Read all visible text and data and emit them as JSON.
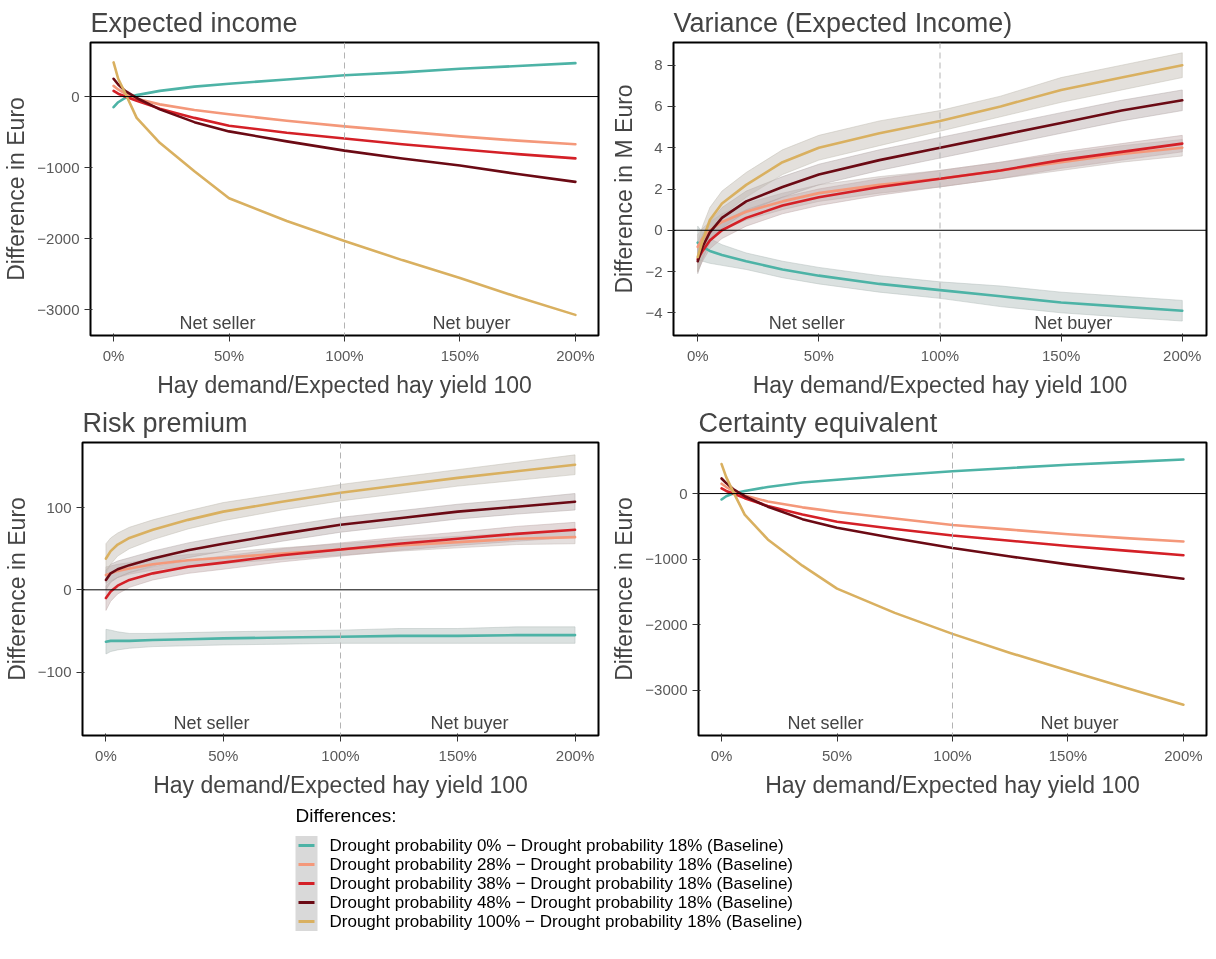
{
  "chart_data": [
    {
      "type": "line",
      "title": "Expected income",
      "xlabel": "Hay demand/Expected hay yield 100",
      "ylabel": "Difference in Euro",
      "x": [
        0,
        2,
        5,
        10,
        20,
        35,
        50,
        75,
        100,
        125,
        150,
        175,
        200
      ],
      "xlim": [
        -10,
        210
      ],
      "xticks": [
        {
          "value": 0,
          "label": "0%"
        },
        {
          "value": 50,
          "label": "50%"
        },
        {
          "value": 100,
          "label": "100%"
        },
        {
          "value": 150,
          "label": "150%"
        },
        {
          "value": 200,
          "label": "200%"
        }
      ],
      "ylim": [
        -3360,
        760
      ],
      "yticks": [
        -3000,
        -2000,
        -1000,
        0
      ],
      "grid": false,
      "ref_lines": [
        {
          "axis": "y",
          "value": 0,
          "color": "#000000",
          "line_style": "solid"
        },
        {
          "axis": "x",
          "value": 100,
          "color": "#b3b3b3",
          "line_style": "dashed"
        }
      ],
      "annotations": [
        "Net seller",
        "Net buyer"
      ],
      "series": [
        {
          "color": "#4db3a6",
          "values": [
            -150,
            -80,
            -20,
            20,
            80,
            140,
            180,
            240,
            300,
            340,
            390,
            430,
            470
          ]
        },
        {
          "color": "#f4987a",
          "values": [
            150,
            100,
            40,
            -30,
            -110,
            -190,
            -250,
            -340,
            -420,
            -490,
            -560,
            -620,
            -670
          ]
        },
        {
          "color": "#d42027",
          "values": [
            80,
            40,
            0,
            -60,
            -170,
            -300,
            -410,
            -510,
            -590,
            -670,
            -740,
            -810,
            -870
          ]
        },
        {
          "color": "#6b0a14",
          "values": [
            250,
            170,
            80,
            -20,
            -180,
            -360,
            -490,
            -630,
            -760,
            -870,
            -970,
            -1090,
            -1200
          ]
        },
        {
          "color": "#d9b060",
          "values": [
            480,
            250,
            50,
            -300,
            -650,
            -1050,
            -1430,
            -1750,
            -2030,
            -2300,
            -2550,
            -2820,
            -3070
          ]
        }
      ]
    },
    {
      "type": "line",
      "title": "Variance (Expected Income)",
      "xlabel": "Hay demand/Expected hay yield 100",
      "ylabel": "Difference in M Euro",
      "x": [
        0,
        2,
        5,
        10,
        20,
        35,
        50,
        75,
        100,
        125,
        150,
        175,
        200
      ],
      "xlim": [
        -10,
        210
      ],
      "xticks": [
        {
          "value": 0,
          "label": "0%"
        },
        {
          "value": 50,
          "label": "50%"
        },
        {
          "value": 100,
          "label": "100%"
        },
        {
          "value": 150,
          "label": "150%"
        },
        {
          "value": 200,
          "label": "200%"
        }
      ],
      "ylim": [
        -5.1,
        9.1
      ],
      "yticks": [
        -4,
        -2,
        0,
        2,
        4,
        6,
        8
      ],
      "grid": false,
      "ref_lines": [
        {
          "axis": "y",
          "value": 0,
          "color": "#000000",
          "line_style": "solid"
        },
        {
          "axis": "x",
          "value": 100,
          "color": "#b3b3b3",
          "line_style": "dashed"
        }
      ],
      "annotations": [
        "Net seller",
        "Net buyer"
      ],
      "series": [
        {
          "color": "#4db3a6",
          "values": [
            -0.6,
            -0.8,
            -1.0,
            -1.2,
            -1.5,
            -1.9,
            -2.2,
            -2.6,
            -2.9,
            -3.2,
            -3.5,
            -3.7,
            -3.9
          ],
          "lower": [
            -1.4,
            -1.5,
            -1.6,
            -1.7,
            -1.9,
            -2.3,
            -2.6,
            -3.0,
            -3.3,
            -3.7,
            -4.0,
            -4.2,
            -4.4
          ],
          "upper": [
            0.2,
            -0.1,
            -0.4,
            -0.7,
            -1.1,
            -1.5,
            -1.8,
            -2.2,
            -2.5,
            -2.7,
            -3.0,
            -3.2,
            -3.4
          ]
        },
        {
          "color": "#f4987a",
          "values": [
            -0.8,
            -0.4,
            0,
            0.4,
            0.9,
            1.4,
            1.8,
            2.2,
            2.5,
            2.9,
            3.3,
            3.7,
            4.0
          ],
          "lower": [
            -1.4,
            -0.9,
            -0.4,
            0.0,
            0.5,
            1.0,
            1.4,
            1.8,
            2.1,
            2.5,
            2.9,
            3.3,
            3.6
          ],
          "upper": [
            -0.2,
            0.1,
            0.4,
            0.8,
            1.3,
            1.8,
            2.2,
            2.6,
            2.9,
            3.3,
            3.7,
            4.1,
            4.4
          ]
        },
        {
          "color": "#d42027",
          "values": [
            -1.4,
            -1.0,
            -0.5,
            0,
            0.6,
            1.2,
            1.6,
            2.1,
            2.5,
            2.9,
            3.4,
            3.8,
            4.2
          ],
          "lower": [
            -2.0,
            -1.5,
            -0.9,
            -0.4,
            0.2,
            0.8,
            1.2,
            1.7,
            2.1,
            2.5,
            3.0,
            3.4,
            3.8
          ],
          "upper": [
            -0.8,
            -0.5,
            -0.1,
            0.4,
            1.0,
            1.6,
            2.0,
            2.5,
            2.9,
            3.3,
            3.8,
            4.2,
            4.6
          ]
        },
        {
          "color": "#6b0a14",
          "values": [
            -1.5,
            -0.8,
            -0.1,
            0.6,
            1.4,
            2.1,
            2.7,
            3.4,
            4.0,
            4.6,
            5.2,
            5.8,
            6.3
          ],
          "lower": [
            -2.1,
            -1.4,
            -0.6,
            0.1,
            0.9,
            1.6,
            2.2,
            2.9,
            3.5,
            4.1,
            4.7,
            5.3,
            5.8
          ],
          "upper": [
            -0.9,
            -0.2,
            0.4,
            1.1,
            1.9,
            2.6,
            3.2,
            3.9,
            4.5,
            5.1,
            5.7,
            6.3,
            6.8
          ]
        },
        {
          "color": "#d9b060",
          "values": [
            -1.3,
            -0.5,
            0.5,
            1.3,
            2.2,
            3.3,
            4.0,
            4.7,
            5.3,
            6.0,
            6.8,
            7.4,
            8.0
          ],
          "lower": [
            -2.0,
            -1.2,
            -0.1,
            0.7,
            1.6,
            2.7,
            3.4,
            4.1,
            4.8,
            5.5,
            6.2,
            6.8,
            7.4
          ],
          "upper": [
            -0.6,
            0.2,
            1.1,
            1.9,
            2.8,
            3.9,
            4.6,
            5.3,
            5.8,
            6.5,
            7.4,
            8.0,
            8.6
          ]
        }
      ]
    },
    {
      "type": "line",
      "title": "Risk premium",
      "xlabel": "Hay demand/Expected hay yield 100",
      "ylabel": "Difference in Euro",
      "x": [
        0,
        2,
        5,
        10,
        20,
        35,
        50,
        75,
        100,
        125,
        150,
        175,
        200
      ],
      "xlim": [
        -10,
        210
      ],
      "xticks": [
        {
          "value": 0,
          "label": "0%"
        },
        {
          "value": 50,
          "label": "50%"
        },
        {
          "value": 100,
          "label": "100%"
        },
        {
          "value": 150,
          "label": "150%"
        },
        {
          "value": 200,
          "label": "200%"
        }
      ],
      "ylim": [
        -177,
        179
      ],
      "yticks": [
        -100,
        0,
        100
      ],
      "grid": false,
      "ref_lines": [
        {
          "axis": "y",
          "value": 0,
          "color": "#000000",
          "line_style": "solid"
        },
        {
          "axis": "x",
          "value": 100,
          "color": "#b3b3b3",
          "line_style": "dashed"
        }
      ],
      "annotations": [
        "Net seller",
        "Net buyer"
      ],
      "series": [
        {
          "color": "#4db3a6",
          "values": [
            -63,
            -62,
            -62,
            -62,
            -61,
            -60,
            -59,
            -58,
            -57,
            -56,
            -56,
            -55,
            -55
          ],
          "lower": [
            -78,
            -75,
            -73,
            -71,
            -69,
            -68,
            -67,
            -66,
            -65,
            -65,
            -65,
            -65,
            -65
          ],
          "upper": [
            -48,
            -49,
            -51,
            -53,
            -53,
            -52,
            -51,
            -50,
            -49,
            -47,
            -47,
            -45,
            -45
          ]
        },
        {
          "color": "#f4987a",
          "values": [
            18,
            20,
            23,
            26,
            31,
            36,
            39,
            44,
            49,
            54,
            58,
            62,
            64
          ],
          "lower": [
            8,
            11,
            15,
            19,
            24,
            29,
            32,
            37,
            42,
            47,
            51,
            55,
            56
          ],
          "upper": [
            28,
            29,
            31,
            33,
            38,
            43,
            46,
            51,
            56,
            61,
            65,
            69,
            72
          ]
        },
        {
          "color": "#d42027",
          "values": [
            -10,
            -2,
            5,
            12,
            20,
            28,
            33,
            42,
            49,
            56,
            62,
            68,
            73
          ],
          "lower": [
            -25,
            -14,
            -5,
            3,
            12,
            20,
            25,
            34,
            41,
            48,
            54,
            59,
            64
          ],
          "upper": [
            5,
            10,
            15,
            21,
            28,
            36,
            41,
            50,
            57,
            64,
            70,
            77,
            82
          ]
        },
        {
          "color": "#6b0a14",
          "values": [
            12,
            20,
            25,
            30,
            38,
            48,
            56,
            68,
            79,
            87,
            95,
            101,
            107
          ],
          "lower": [
            0,
            9,
            15,
            21,
            29,
            39,
            47,
            59,
            70,
            78,
            86,
            92,
            97
          ],
          "upper": [
            24,
            31,
            35,
            39,
            47,
            57,
            65,
            77,
            88,
            96,
            104,
            110,
            117
          ]
        },
        {
          "color": "#d9b060",
          "values": [
            38,
            47,
            55,
            63,
            73,
            85,
            95,
            107,
            118,
            127,
            136,
            144,
            152
          ],
          "lower": [
            20,
            31,
            41,
            50,
            61,
            74,
            84,
            97,
            108,
            117,
            126,
            133,
            140
          ],
          "upper": [
            56,
            63,
            69,
            76,
            85,
            96,
            106,
            117,
            128,
            137,
            146,
            155,
            164
          ]
        }
      ]
    },
    {
      "type": "line",
      "title": "Certainty equivalent",
      "xlabel": "Hay demand/Expected hay yield 100",
      "ylabel": "Difference in Euro",
      "x": [
        0,
        2,
        5,
        10,
        20,
        35,
        50,
        75,
        100,
        125,
        150,
        175,
        200
      ],
      "xlim": [
        -10,
        210
      ],
      "xticks": [
        {
          "value": 0,
          "label": "0%"
        },
        {
          "value": 50,
          "label": "50%"
        },
        {
          "value": 100,
          "label": "100%"
        },
        {
          "value": 150,
          "label": "150%"
        },
        {
          "value": 200,
          "label": "200%"
        }
      ],
      "ylim": [
        -3690,
        779
      ],
      "yticks": [
        -3000,
        -2000,
        -1000,
        0
      ],
      "grid": false,
      "ref_lines": [
        {
          "axis": "y",
          "value": 0,
          "color": "#000000",
          "line_style": "solid"
        },
        {
          "axis": "x",
          "value": 100,
          "color": "#b3b3b3",
          "line_style": "dashed"
        }
      ],
      "annotations": [
        "Net seller",
        "Net buyer"
      ],
      "legend": "bottom",
      "legend_title": "Differences:",
      "series": [
        {
          "name": "Drought probability 0% − Drought probability 18% (Baseline)",
          "color": "#4db3a6",
          "values": [
            -90,
            -40,
            0,
            40,
            100,
            170,
            210,
            280,
            340,
            390,
            440,
            480,
            520
          ]
        },
        {
          "name": "Drought probability 28% − Drought probability 18% (Baseline)",
          "color": "#f4987a",
          "values": [
            150,
            100,
            40,
            -30,
            -120,
            -210,
            -280,
            -380,
            -480,
            -550,
            -620,
            -680,
            -730
          ]
        },
        {
          "name": "Drought probability 38% − Drought probability 18% (Baseline)",
          "color": "#d42027",
          "values": [
            80,
            40,
            0,
            -70,
            -190,
            -320,
            -430,
            -540,
            -640,
            -720,
            -800,
            -870,
            -940
          ]
        },
        {
          "name": "Drought probability 48% − Drought probability 18% (Baseline)",
          "color": "#6b0a14",
          "values": [
            230,
            160,
            70,
            -40,
            -200,
            -390,
            -520,
            -680,
            -830,
            -960,
            -1080,
            -1190,
            -1300
          ]
        },
        {
          "name": "Drought probability 100% − Drought probability 18% (Baseline)",
          "color": "#d9b060",
          "values": [
            450,
            250,
            30,
            -320,
            -700,
            -1100,
            -1450,
            -1820,
            -2140,
            -2430,
            -2700,
            -2960,
            -3220
          ]
        }
      ]
    }
  ]
}
